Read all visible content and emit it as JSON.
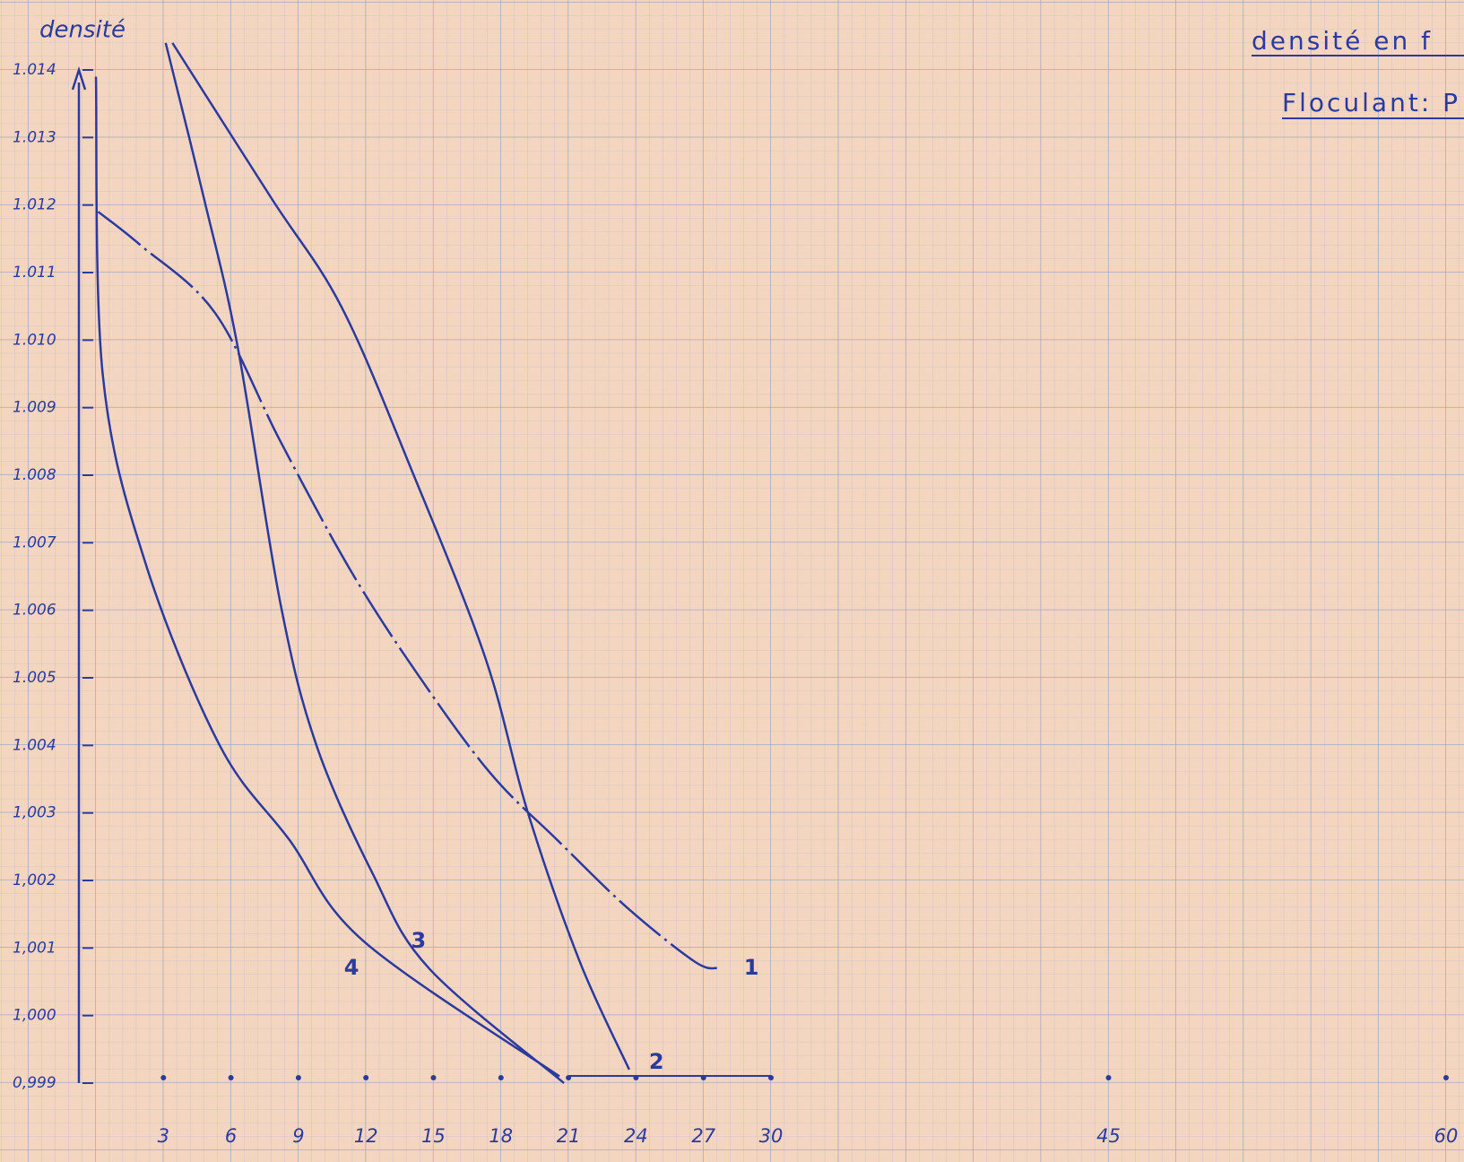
{
  "chart_data": {
    "type": "line",
    "title": "densité en f",
    "subtitle": "Floculant: P",
    "y_label": "densité",
    "color": "#2b3a9e",
    "xlim": [
      0,
      60
    ],
    "ylim": [
      0.999,
      1.014
    ],
    "xticks": [
      3,
      6,
      9,
      12,
      15,
      18,
      21,
      24,
      27,
      30,
      45,
      60
    ],
    "yticks": [
      1.014,
      1.013,
      1.012,
      1.011,
      {
        "value": 1.01,
        "label": "1.010"
      },
      1.009,
      1.008,
      1.007,
      1.006,
      1.005,
      1.004,
      {
        "value": 1.003,
        "label": "1,003"
      },
      {
        "value": 1.002,
        "label": "1,002"
      },
      {
        "value": 1.001,
        "label": "1,001"
      },
      {
        "value": 1.0,
        "label": "1,000"
      },
      {
        "value": 0.999,
        "label": "0,999"
      }
    ],
    "series": [
      {
        "name": "1",
        "x": [
          0.1,
          2,
          5.3,
          8.2,
          11.3,
          14.2,
          17.5,
          20.5,
          23.6,
          26.6,
          27.6
        ],
        "values": [
          1.0119,
          1.0114,
          1.0104,
          1.0085,
          1.0066,
          1.0051,
          1.0036,
          1.0026,
          1.0016,
          1.0008,
          1.0007
        ]
      },
      {
        "name": "2",
        "x": [
          3.4,
          7.8,
          10.9,
          14,
          17.3,
          19.2,
          21.5,
          23.7
        ],
        "values": [
          1.0144,
          1.0121,
          1.0105,
          1.0081,
          1.0053,
          1.003,
          1.0008,
          0.9992
        ]
      },
      {
        "name": "3",
        "x": [
          3.1,
          4.8,
          6.3,
          8.2,
          9.8,
          12.3,
          14.8,
          20.8
        ],
        "values": [
          1.0144,
          1.0121,
          1.0099,
          1.0061,
          1.004,
          1.0021,
          1.0007,
          0.999
        ]
      },
      {
        "name": "4",
        "x": [
          0,
          0.3,
          2.2,
          5.5,
          8.6,
          11.9,
          20.6
        ],
        "values": [
          1.0139,
          1.0095,
          1.0067,
          1.004,
          1.0026,
          1.0011,
          0.9991
        ]
      }
    ]
  }
}
